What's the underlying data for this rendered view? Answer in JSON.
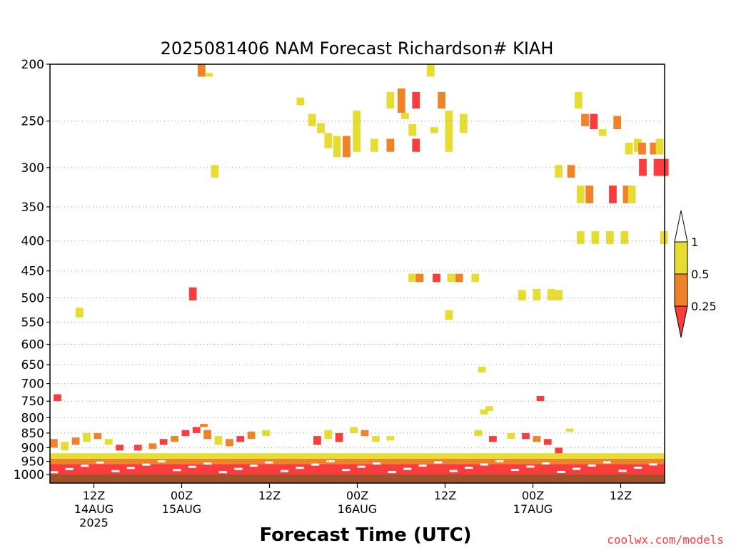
{
  "chart_data": {
    "type": "heatmap",
    "title": "2025081406 NAM Forecast Richardson# KIAH",
    "xlabel": "Forecast Time (UTC)",
    "ylabel": "",
    "y_scale": "log-pressure (hPa), inverted",
    "ylim": [
      1000,
      200
    ],
    "y_ticks": [
      200,
      250,
      300,
      350,
      400,
      450,
      500,
      550,
      600,
      650,
      700,
      750,
      800,
      850,
      900,
      950,
      1000
    ],
    "x_ticks": [
      {
        "label": "12Z",
        "date": "14AUG",
        "year": "2025",
        "hour": 12
      },
      {
        "label": "00Z",
        "date": "15AUG",
        "year": "",
        "hour": 24
      },
      {
        "label": "12Z",
        "date": "",
        "year": "",
        "hour": 36
      },
      {
        "label": "00Z",
        "date": "16AUG",
        "year": "",
        "hour": 48
      },
      {
        "label": "12Z",
        "date": "",
        "year": "",
        "hour": 60
      },
      {
        "label": "00Z",
        "date": "17AUG",
        "year": "",
        "hour": 72
      },
      {
        "label": "12Z",
        "date": "",
        "year": "",
        "hour": 84
      }
    ],
    "x_range_hours_since_0z_14aug": [
      6,
      90
    ],
    "colorbar": {
      "levels": [
        "1",
        "0.5",
        "0.25"
      ],
      "colors": {
        "above_1": "#ffffff",
        "0.5-1": "#e6dc32",
        "0.25-0.5": "#f08228",
        "below_0.25": "#fa3c3c"
      }
    },
    "ground_color": "#a0522d",
    "grid": "dotted, horizontal only",
    "watermark": "coolwx.com/models",
    "cells": [
      {
        "h": 26.2,
        "p0": 200,
        "p1": 210,
        "v": 0.3
      },
      {
        "h": 27.2,
        "p0": 207,
        "p1": 210,
        "v": 0.7
      },
      {
        "h": 39.7,
        "p0": 228,
        "p1": 235,
        "v": 0.7
      },
      {
        "h": 41.3,
        "p0": 243,
        "p1": 255,
        "v": 0.7
      },
      {
        "h": 42.5,
        "p0": 252,
        "p1": 262,
        "v": 0.7
      },
      {
        "h": 43.5,
        "p0": 262,
        "p1": 278,
        "v": 0.7
      },
      {
        "h": 44.7,
        "p0": 265,
        "p1": 288,
        "v": 0.7
      },
      {
        "h": 46.0,
        "p0": 265,
        "p1": 288,
        "v": 0.3
      },
      {
        "h": 47.4,
        "p0": 240,
        "p1": 282,
        "v": 0.7
      },
      {
        "h": 49.8,
        "p0": 268,
        "p1": 282,
        "v": 0.7
      },
      {
        "h": 52.0,
        "p0": 223,
        "p1": 238,
        "v": 0.7
      },
      {
        "h": 52.0,
        "p0": 268,
        "p1": 282,
        "v": 0.3
      },
      {
        "h": 53.5,
        "p0": 220,
        "p1": 242,
        "v": 0.3
      },
      {
        "h": 54.0,
        "p0": 242,
        "p1": 248,
        "v": 0.7
      },
      {
        "h": 55.5,
        "p0": 223,
        "p1": 238,
        "v": 0.15
      },
      {
        "h": 55.0,
        "p0": 253,
        "p1": 265,
        "v": 0.7
      },
      {
        "h": 55.5,
        "p0": 268,
        "p1": 282,
        "v": 0.15
      },
      {
        "h": 57.5,
        "p0": 200,
        "p1": 210,
        "v": 0.7
      },
      {
        "h": 58.0,
        "p0": 256,
        "p1": 262,
        "v": 0.7
      },
      {
        "h": 59.0,
        "p0": 223,
        "p1": 238,
        "v": 0.3
      },
      {
        "h": 60.0,
        "p0": 240,
        "p1": 282,
        "v": 0.7
      },
      {
        "h": 62.0,
        "p0": 243,
        "p1": 262,
        "v": 0.7
      },
      {
        "h": 28.0,
        "p0": 297,
        "p1": 312,
        "v": 0.7
      },
      {
        "h": 75.0,
        "p0": 297,
        "p1": 312,
        "v": 0.7
      },
      {
        "h": 76.7,
        "p0": 297,
        "p1": 312,
        "v": 0.3
      },
      {
        "h": 77.7,
        "p0": 223,
        "p1": 238,
        "v": 0.7
      },
      {
        "h": 78.6,
        "p0": 243,
        "p1": 255,
        "v": 0.3
      },
      {
        "h": 79.8,
        "p0": 243,
        "p1": 258,
        "v": 0.15
      },
      {
        "h": 81.0,
        "p0": 258,
        "p1": 265,
        "v": 0.7
      },
      {
        "h": 83.0,
        "p0": 245,
        "p1": 258,
        "v": 0.3
      },
      {
        "h": 78.0,
        "p0": 322,
        "p1": 345,
        "v": 0.7
      },
      {
        "h": 79.2,
        "p0": 322,
        "p1": 345,
        "v": 0.3
      },
      {
        "h": 82.4,
        "p0": 322,
        "p1": 345,
        "v": 0.15
      },
      {
        "h": 84.3,
        "p0": 322,
        "p1": 345,
        "v": 0.3
      },
      {
        "h": 85.0,
        "p0": 322,
        "p1": 345,
        "v": 0.7
      },
      {
        "h": 84.6,
        "p0": 272,
        "p1": 285,
        "v": 0.7
      },
      {
        "h": 85.8,
        "p0": 268,
        "p1": 282,
        "v": 0.7
      },
      {
        "h": 86.4,
        "p0": 272,
        "p1": 285,
        "v": 0.3
      },
      {
        "h": 88.0,
        "p0": 272,
        "p1": 285,
        "v": 0.3
      },
      {
        "h": 88.8,
        "p0": 268,
        "p1": 285,
        "v": 0.7
      },
      {
        "h": 86.5,
        "p0": 290,
        "p1": 310,
        "v": 0.15
      },
      {
        "h": 88.5,
        "p0": 290,
        "p1": 310,
        "v": 0.15
      },
      {
        "h": 89.5,
        "p0": 290,
        "p1": 310,
        "v": 0.15
      },
      {
        "h": 78.0,
        "p0": 385,
        "p1": 405,
        "v": 0.7
      },
      {
        "h": 80.0,
        "p0": 385,
        "p1": 405,
        "v": 0.7
      },
      {
        "h": 82.0,
        "p0": 385,
        "p1": 405,
        "v": 0.7
      },
      {
        "h": 84.0,
        "p0": 385,
        "p1": 405,
        "v": 0.7
      },
      {
        "h": 89.4,
        "p0": 385,
        "p1": 405,
        "v": 0.7
      },
      {
        "h": 55.0,
        "p0": 455,
        "p1": 470,
        "v": 0.7
      },
      {
        "h": 56.0,
        "p0": 455,
        "p1": 470,
        "v": 0.3
      },
      {
        "h": 58.3,
        "p0": 455,
        "p1": 470,
        "v": 0.15
      },
      {
        "h": 60.3,
        "p0": 455,
        "p1": 470,
        "v": 0.7
      },
      {
        "h": 61.4,
        "p0": 455,
        "p1": 470,
        "v": 0.3
      },
      {
        "h": 63.6,
        "p0": 455,
        "p1": 470,
        "v": 0.7
      },
      {
        "h": 70.0,
        "p0": 485,
        "p1": 505,
        "v": 0.7
      },
      {
        "h": 72.0,
        "p0": 483,
        "p1": 505,
        "v": 0.7
      },
      {
        "h": 74.0,
        "p0": 483,
        "p1": 505,
        "v": 0.7
      },
      {
        "h": 75.0,
        "p0": 485,
        "p1": 505,
        "v": 0.7
      },
      {
        "h": 25.0,
        "p0": 480,
        "p1": 505,
        "v": 0.15
      },
      {
        "h": 9.5,
        "p0": 520,
        "p1": 540,
        "v": 0.7
      },
      {
        "h": 60.0,
        "p0": 525,
        "p1": 545,
        "v": 0.7
      },
      {
        "h": 64.5,
        "p0": 655,
        "p1": 670,
        "v": 0.7
      },
      {
        "h": 6.5,
        "p0": 730,
        "p1": 750,
        "v": 0.15
      },
      {
        "h": 72.5,
        "p0": 735,
        "p1": 750,
        "v": 0.15
      },
      {
        "h": 64.8,
        "p0": 775,
        "p1": 790,
        "v": 0.7
      },
      {
        "h": 65.5,
        "p0": 765,
        "p1": 780,
        "v": 0.7
      },
      {
        "h": 26.5,
        "p0": 820,
        "p1": 830,
        "v": 0.3
      },
      {
        "h": 76.5,
        "p0": 835,
        "p1": 845,
        "v": 0.7
      }
    ],
    "bands": [
      {
        "h0": 6.0,
        "h1": 90.0,
        "p0": 960,
        "p1": 1000,
        "v": 0.15
      },
      {
        "h0": 6.0,
        "h1": 90.0,
        "p0": 940,
        "p1": 960,
        "v": 0.3
      },
      {
        "h0": 6.0,
        "h1": 90.0,
        "p0": 920,
        "p1": 940,
        "v": 0.7
      }
    ],
    "boundary_layer_cells": [
      {
        "h": 6.0,
        "p0": 870,
        "p1": 900,
        "v": 0.3
      },
      {
        "h": 7.5,
        "p0": 880,
        "p1": 910,
        "v": 0.7
      },
      {
        "h": 9.0,
        "p0": 865,
        "p1": 890,
        "v": 0.3
      },
      {
        "h": 10.5,
        "p0": 850,
        "p1": 880,
        "v": 0.7
      },
      {
        "h": 12.0,
        "p0": 850,
        "p1": 870,
        "v": 0.3
      },
      {
        "h": 13.5,
        "p0": 870,
        "p1": 890,
        "v": 0.7
      },
      {
        "h": 15.0,
        "p0": 890,
        "p1": 910,
        "v": 0.15
      },
      {
        "h": 17.5,
        "p0": 890,
        "p1": 910,
        "v": 0.15
      },
      {
        "h": 19.5,
        "p0": 885,
        "p1": 905,
        "v": 0.3
      },
      {
        "h": 21.0,
        "p0": 870,
        "p1": 890,
        "v": 0.15
      },
      {
        "h": 22.5,
        "p0": 860,
        "p1": 880,
        "v": 0.3
      },
      {
        "h": 24.0,
        "p0": 840,
        "p1": 860,
        "v": 0.15
      },
      {
        "h": 25.5,
        "p0": 830,
        "p1": 850,
        "v": 0.15
      },
      {
        "h": 27.0,
        "p0": 840,
        "p1": 870,
        "v": 0.3
      },
      {
        "h": 28.5,
        "p0": 860,
        "p1": 890,
        "v": 0.7
      },
      {
        "h": 30.0,
        "p0": 870,
        "p1": 895,
        "v": 0.3
      },
      {
        "h": 31.5,
        "p0": 860,
        "p1": 880,
        "v": 0.15
      },
      {
        "h": 33.0,
        "p0": 845,
        "p1": 870,
        "v": 0.3
      },
      {
        "h": 35.0,
        "p0": 840,
        "p1": 860,
        "v": 0.7
      },
      {
        "h": 42.0,
        "p0": 860,
        "p1": 890,
        "v": 0.15
      },
      {
        "h": 43.5,
        "p0": 840,
        "p1": 870,
        "v": 0.7
      },
      {
        "h": 45.0,
        "p0": 850,
        "p1": 880,
        "v": 0.15
      },
      {
        "h": 47.0,
        "p0": 830,
        "p1": 850,
        "v": 0.7
      },
      {
        "h": 48.5,
        "p0": 840,
        "p1": 860,
        "v": 0.3
      },
      {
        "h": 50.0,
        "p0": 860,
        "p1": 880,
        "v": 0.7
      },
      {
        "h": 52.0,
        "p0": 860,
        "p1": 875,
        "v": 0.7
      },
      {
        "h": 64.0,
        "p0": 840,
        "p1": 860,
        "v": 0.7
      },
      {
        "h": 66.0,
        "p0": 860,
        "p1": 880,
        "v": 0.15
      },
      {
        "h": 68.5,
        "p0": 850,
        "p1": 870,
        "v": 0.7
      },
      {
        "h": 70.5,
        "p0": 850,
        "p1": 870,
        "v": 0.15
      },
      {
        "h": 72.0,
        "p0": 860,
        "p1": 880,
        "v": 0.3
      },
      {
        "h": 73.5,
        "p0": 870,
        "p1": 890,
        "v": 0.15
      },
      {
        "h": 75.0,
        "p0": 900,
        "p1": 920,
        "v": 0.15
      }
    ]
  }
}
